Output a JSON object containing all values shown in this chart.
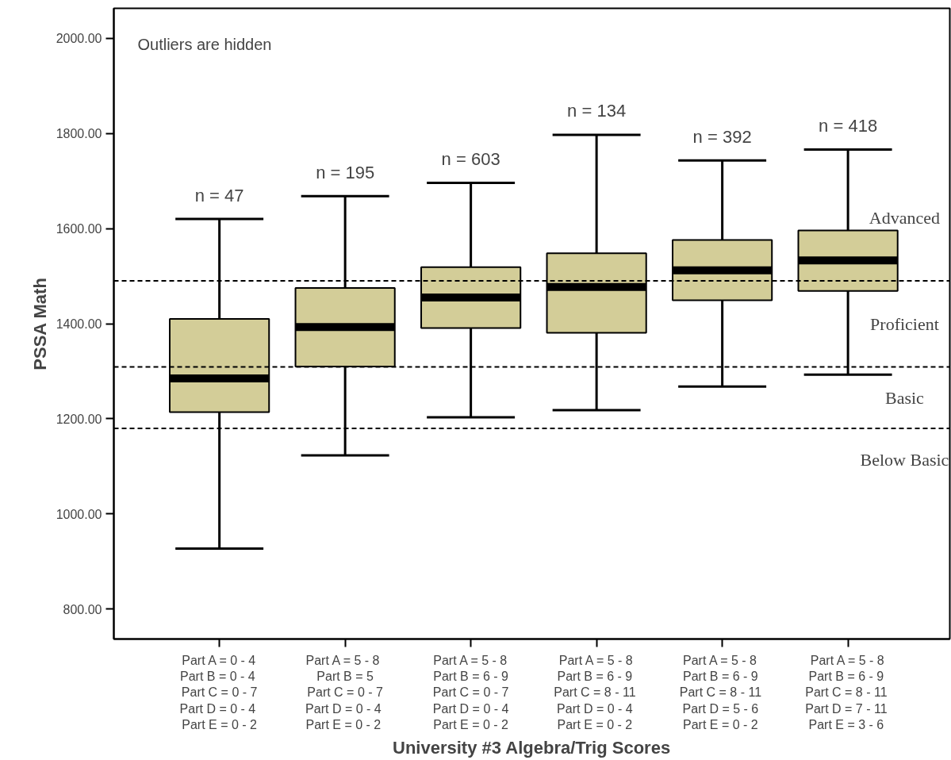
{
  "chart_data": {
    "type": "box",
    "categories": [
      "Part A = 0 - 4\nPart B =  0 - 4\nPart C = 0 - 7\nPart D =  0 - 4\nPart E = 0 - 2",
      "Part A =  5 - 8\nPart B = 5\nPart C = 0 - 7\nPart D =  0 - 4\nPart E =  0 - 2",
      "Part A = 5 - 8\nPart B = 6 - 9\nPart C = 0 - 7\nPart D = 0 - 4\nPart E = 0 - 2",
      "Part A = 5 - 8\nPart B =  6 - 9\nPart C =  8 - 11\nPart D =  0 - 4\nPart E =  0 - 2",
      "Part A =  5 - 8\nPart B =  6 - 9\nPart C =  8 - 11\nPart D =  5 - 6\nPart E =  0 - 2",
      "Part A = 5 - 8\nPart B =  6 - 9\nPart C =  8 - 11\nPart D =  7 - 11\nPart E =  3 - 6"
    ],
    "color": "#d3cd98",
    "boxes": [
      {
        "low": 927,
        "q1": 1214,
        "median": 1285,
        "q3": 1410,
        "high": 1620
      },
      {
        "low": 1123,
        "q1": 1310,
        "median": 1393,
        "q3": 1475,
        "high": 1668
      },
      {
        "low": 1203,
        "q1": 1391,
        "median": 1455,
        "q3": 1519,
        "high": 1696
      },
      {
        "low": 1218,
        "q1": 1381,
        "median": 1477,
        "q3": 1548,
        "high": 1797
      },
      {
        "low": 1268,
        "q1": 1449,
        "median": 1512,
        "q3": 1576,
        "high": 1743
      },
      {
        "low": 1293,
        "q1": 1469,
        "median": 1533,
        "q3": 1596,
        "high": 1766
      }
    ],
    "xlabel": "University #3 Algebra/Trig Scores",
    "ylabel": "PSSA Math",
    "ylim": [
      737,
      2063
    ],
    "yticks": [
      {
        "value": 800,
        "label": "800.00"
      },
      {
        "value": 1000,
        "label": "1000.00"
      },
      {
        "value": 1200,
        "label": "1200.00"
      },
      {
        "value": 1400,
        "label": "1400.00"
      },
      {
        "value": 1600,
        "label": "1600.00"
      },
      {
        "value": 1800,
        "label": "1800.00"
      },
      {
        "value": 2000,
        "label": "2000.00"
      }
    ],
    "grid": false,
    "ref_lines": [
      {
        "axis": "y",
        "value": 1490,
        "line_style": "dashed"
      },
      {
        "axis": "y",
        "value": 1309,
        "line_style": "dashed"
      },
      {
        "axis": "y",
        "value": 1180,
        "line_style": "dashed"
      }
    ],
    "annotations": [
      "Outliers are hidden",
      "n = 47",
      "n = 195",
      "n = 603",
      "n = 134",
      "n = 392",
      "n = 418",
      "Advanced",
      "Proficient",
      "Basic",
      "Below Basic"
    ]
  }
}
